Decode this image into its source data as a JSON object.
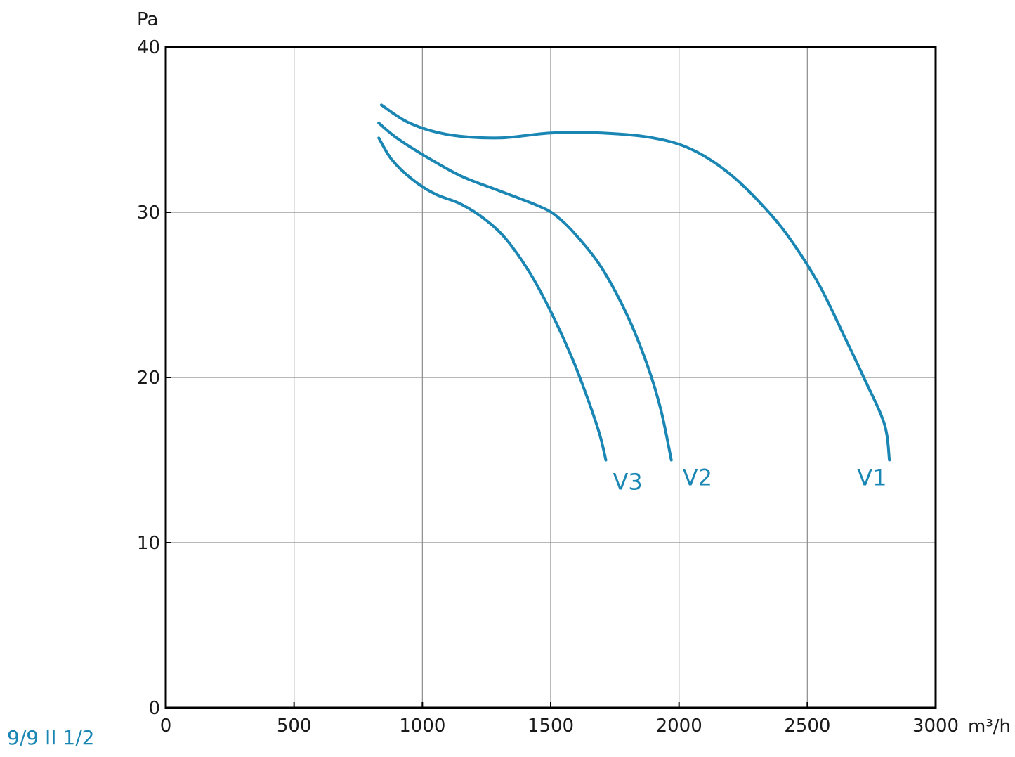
{
  "model_code": "9/9 II 1/2",
  "colors": {
    "curve": "#1a86b3",
    "grid": "#8c8c8c",
    "frame": "#000000",
    "text": "#1a1a1a"
  },
  "chart_data": {
    "type": "line",
    "xlabel": "m³/h",
    "ylabel": "Pa",
    "xlim": [
      0,
      3000
    ],
    "ylim": [
      0,
      40
    ],
    "x_ticks": [
      0,
      500,
      1000,
      1500,
      2000,
      2500,
      3000
    ],
    "y_ticks": [
      0,
      10,
      20,
      30,
      40
    ],
    "grid": true,
    "series": [
      {
        "name": "V1",
        "points": [
          [
            840,
            36.5
          ],
          [
            950,
            35.4
          ],
          [
            1100,
            34.7
          ],
          [
            1300,
            34.5
          ],
          [
            1500,
            34.8
          ],
          [
            1700,
            34.8
          ],
          [
            1900,
            34.5
          ],
          [
            2050,
            33.8
          ],
          [
            2200,
            32.3
          ],
          [
            2350,
            30.0
          ],
          [
            2450,
            28.0
          ],
          [
            2550,
            25.5
          ],
          [
            2650,
            22.3
          ],
          [
            2720,
            20.0
          ],
          [
            2800,
            17.2
          ],
          [
            2820,
            15.0
          ]
        ]
      },
      {
        "name": "V2",
        "points": [
          [
            830,
            35.4
          ],
          [
            900,
            34.5
          ],
          [
            1000,
            33.5
          ],
          [
            1150,
            32.2
          ],
          [
            1300,
            31.3
          ],
          [
            1450,
            30.4
          ],
          [
            1520,
            29.8
          ],
          [
            1600,
            28.6
          ],
          [
            1700,
            26.6
          ],
          [
            1800,
            23.7
          ],
          [
            1880,
            20.6
          ],
          [
            1930,
            18.0
          ],
          [
            1970,
            15.0
          ]
        ]
      },
      {
        "name": "V3",
        "points": [
          [
            830,
            34.5
          ],
          [
            880,
            33.2
          ],
          [
            960,
            32.0
          ],
          [
            1050,
            31.1
          ],
          [
            1150,
            30.5
          ],
          [
            1250,
            29.5
          ],
          [
            1330,
            28.3
          ],
          [
            1420,
            26.3
          ],
          [
            1500,
            24.0
          ],
          [
            1580,
            21.3
          ],
          [
            1640,
            18.9
          ],
          [
            1690,
            16.6
          ],
          [
            1715,
            15.0
          ]
        ]
      }
    ]
  }
}
